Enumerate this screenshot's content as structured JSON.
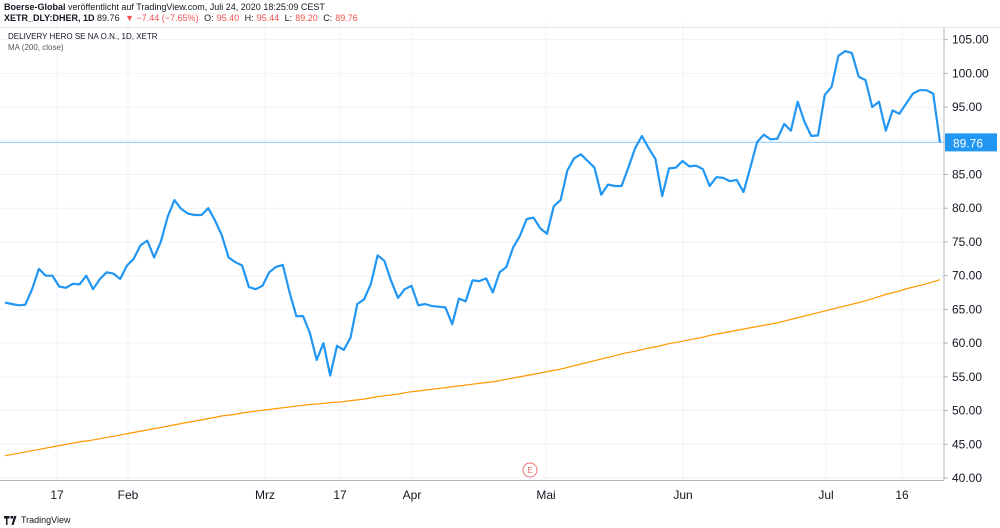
{
  "header": {
    "publisher": "Boerse-Global",
    "published_text": "veröffentlicht auf TradingView.com, Juli 24, 2020 18:25:09 CEST",
    "symbol": "XETR_DLY:DHER, 1D",
    "last": "89.76",
    "change": "▼ −7.44 (−7.65%)",
    "open_label": "O:",
    "open": "95.40",
    "high_label": "H:",
    "high": "95.44",
    "low_label": "L:",
    "low": "89.20",
    "close_label": "C:",
    "close": "89.76"
  },
  "legend": {
    "title": "DELIVERY HERO SE NA O.N., 1D, XETR",
    "ma": "MA (200, close)"
  },
  "footer": {
    "brand": "TradingView"
  },
  "colors": {
    "price_line": "#2196f3",
    "ma_line": "#ff9800",
    "last_price_bg": "#2196f3",
    "grid": "#f0f3fa",
    "earnings_marker": "#e57373"
  },
  "chart_data": {
    "type": "line",
    "title": "DELIVERY HERO SE NA O.N., 1D, XETR",
    "ylim": [
      40,
      107
    ],
    "y_ticks": [
      "40.00",
      "45.00",
      "50.00",
      "55.00",
      "60.00",
      "65.00",
      "70.00",
      "75.00",
      "80.00",
      "85.00",
      "90.00",
      "95.00",
      "100.00",
      "105.00"
    ],
    "x_ticks": [
      "17",
      "Feb",
      "Mrz",
      "17",
      "Apr",
      "Mai",
      "Jun",
      "Jul",
      "16"
    ],
    "last_price_label": "89.76",
    "earnings_marker": "E",
    "series": [
      {
        "name": "DELIVERY HERO SE NA O.N.",
        "values": [
          66.0,
          65.8,
          65.6,
          65.7,
          68.0,
          71.0,
          70.0,
          70.0,
          68.4,
          68.2,
          68.8,
          68.7,
          70.0,
          68.0,
          69.5,
          70.5,
          70.3,
          69.5,
          71.5,
          72.5,
          74.5,
          75.2,
          72.7,
          75.0,
          78.7,
          81.2,
          79.9,
          79.2,
          79.0,
          79.0,
          80.0,
          78.2,
          76.0,
          72.7,
          72.0,
          71.5,
          68.3,
          68.0,
          68.5,
          70.5,
          71.3,
          71.6,
          67.5,
          64.0,
          64.0,
          61.5,
          57.5,
          60.0,
          55.2,
          59.6,
          59.0,
          60.8,
          65.8,
          66.5,
          68.8,
          73.0,
          72.2,
          69.2,
          66.7,
          68.0,
          68.5,
          65.6,
          65.8,
          65.5,
          65.4,
          65.3,
          62.8,
          66.6,
          66.2,
          69.3,
          69.2,
          69.6,
          67.5,
          70.5,
          71.3,
          74.2,
          75.9,
          78.4,
          78.6,
          77.0,
          76.2,
          80.3,
          81.2,
          85.6,
          87.4,
          88.0,
          87.0,
          86.0,
          82.0,
          83.5,
          83.3,
          83.3,
          86.0,
          88.9,
          90.7,
          88.9,
          87.3,
          81.8,
          85.9,
          86.0,
          87.0,
          86.2,
          86.3,
          85.8,
          83.3,
          84.6,
          84.5,
          84.0,
          84.2,
          82.4,
          86.0,
          89.8,
          90.9,
          90.2,
          90.3,
          92.5,
          91.5,
          95.8,
          92.8,
          90.7,
          90.8,
          96.8,
          98.0,
          102.6,
          103.3,
          103.0,
          99.5,
          99.0,
          95.0,
          95.8,
          91.5,
          94.5,
          94.0,
          95.5,
          97.0,
          97.5,
          97.5,
          97.0,
          89.76
        ]
      },
      {
        "name": "MA (200, close)",
        "values": [
          43.3,
          43.6,
          43.9,
          44.2,
          44.5,
          44.8,
          45.1,
          45.4,
          45.6,
          45.9,
          46.2,
          46.5,
          46.8,
          47.1,
          47.4,
          47.7,
          48.0,
          48.3,
          48.6,
          48.9,
          49.2,
          49.4,
          49.7,
          49.9,
          50.1,
          50.3,
          50.5,
          50.7,
          50.9,
          51.0,
          51.2,
          51.3,
          51.5,
          51.7,
          52.0,
          52.2,
          52.4,
          52.7,
          52.9,
          53.1,
          53.3,
          53.5,
          53.7,
          53.9,
          54.1,
          54.3,
          54.6,
          54.9,
          55.2,
          55.5,
          55.8,
          56.1,
          56.5,
          56.9,
          57.3,
          57.7,
          58.1,
          58.5,
          58.8,
          59.2,
          59.5,
          59.9,
          60.2,
          60.5,
          60.8,
          61.2,
          61.5,
          61.8,
          62.1,
          62.4,
          62.7,
          63.0,
          63.4,
          63.8,
          64.2,
          64.6,
          65.0,
          65.4,
          65.8,
          66.2,
          66.7,
          67.2,
          67.6,
          68.1,
          68.5,
          68.9,
          69.4
        ]
      }
    ]
  }
}
